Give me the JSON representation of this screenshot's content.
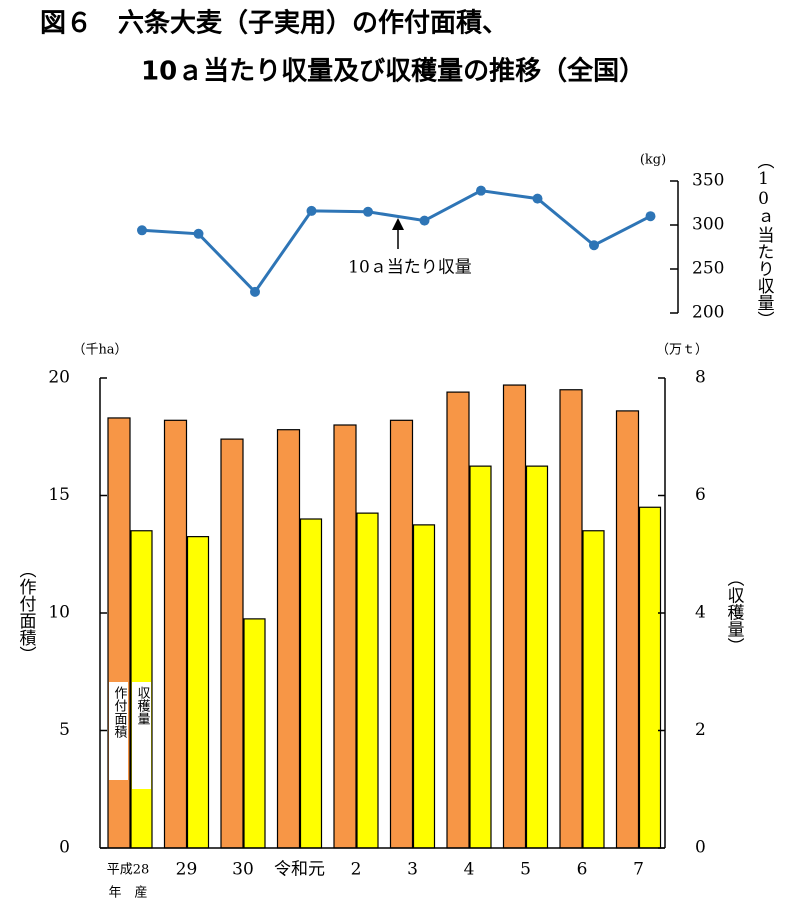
{
  "title": [
    "図６　六条大麦（子実用）の作付面積、",
    "10ａ当たり収量及び収穫量の推移（全国）"
  ],
  "chart_data": [
    {
      "type": "line",
      "y_label": "（10ａ当たり収量）",
      "y_unit": "(kg)",
      "annotation": "10ａ当たり収量",
      "categories": [
        "平成28",
        "29",
        "30",
        "令和元",
        "2",
        "3",
        "4",
        "5",
        "6",
        "7"
      ],
      "series": [
        {
          "name": "10ａ当たり収量",
          "color": "#2e75b6",
          "values": [
            294,
            290,
            224,
            316,
            315,
            305,
            339,
            330,
            277,
            310
          ]
        }
      ],
      "ylim": [
        200,
        350
      ],
      "yticks": [
        200,
        250,
        300,
        350
      ]
    },
    {
      "type": "bar",
      "y_label": "（作付面積）",
      "y_unit": "（千ha）",
      "y2_label": "（収穫量）",
      "y2_unit": "（万ｔ）",
      "categories": [
        "平成28",
        "29",
        "30",
        "令和元",
        "2",
        "3",
        "4",
        "5",
        "6",
        "7"
      ],
      "x_suffix": "年　産",
      "series": [
        {
          "name": "作付面積",
          "color": "#f79646",
          "values": [
            18.3,
            18.2,
            17.4,
            17.8,
            18.0,
            18.2,
            19.4,
            19.7,
            19.5,
            18.6
          ]
        },
        {
          "name": "収穫量",
          "color": "#ffff00",
          "axis": "y2",
          "values": [
            5.4,
            5.3,
            3.9,
            5.6,
            5.7,
            5.5,
            6.5,
            6.5,
            5.4,
            5.8
          ]
        }
      ],
      "ylim": [
        0,
        20
      ],
      "yticks": [
        0,
        5,
        10,
        15,
        20
      ],
      "y2lim": [
        0,
        8
      ],
      "y2ticks": [
        0,
        2,
        4,
        6,
        8
      ]
    }
  ]
}
